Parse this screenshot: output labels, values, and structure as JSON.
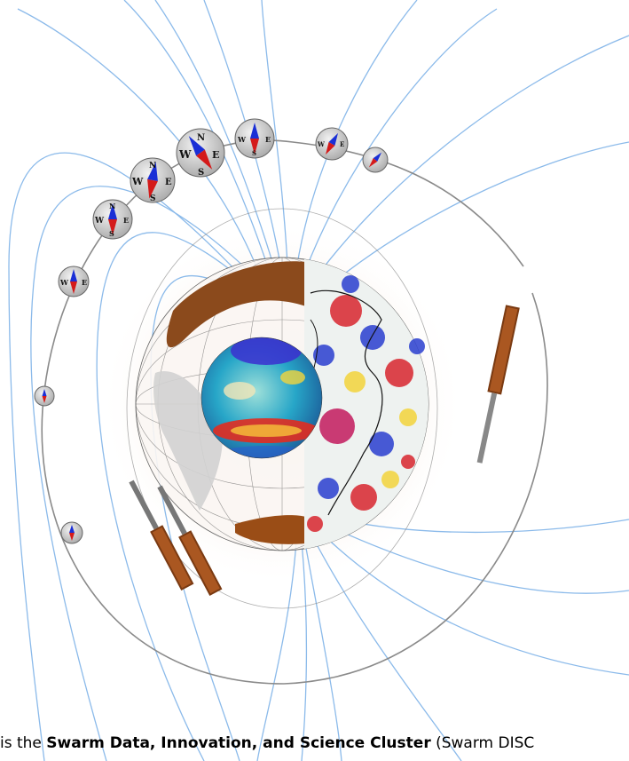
{
  "compass": {
    "north": "N",
    "south": "S",
    "east": "E",
    "west": "W",
    "needle_colors": {
      "north": "#1a2fd6",
      "south": "#d41a1a"
    }
  },
  "caption": {
    "part1": "is the ",
    "bold": "Swarm Data, Innovation, and Science Cluster",
    "part2": " (Swarm DISC"
  },
  "colors": {
    "field_lines": "#7fb3e8",
    "orbit": "#8a8a8a",
    "continent": "#8b4a1c"
  }
}
